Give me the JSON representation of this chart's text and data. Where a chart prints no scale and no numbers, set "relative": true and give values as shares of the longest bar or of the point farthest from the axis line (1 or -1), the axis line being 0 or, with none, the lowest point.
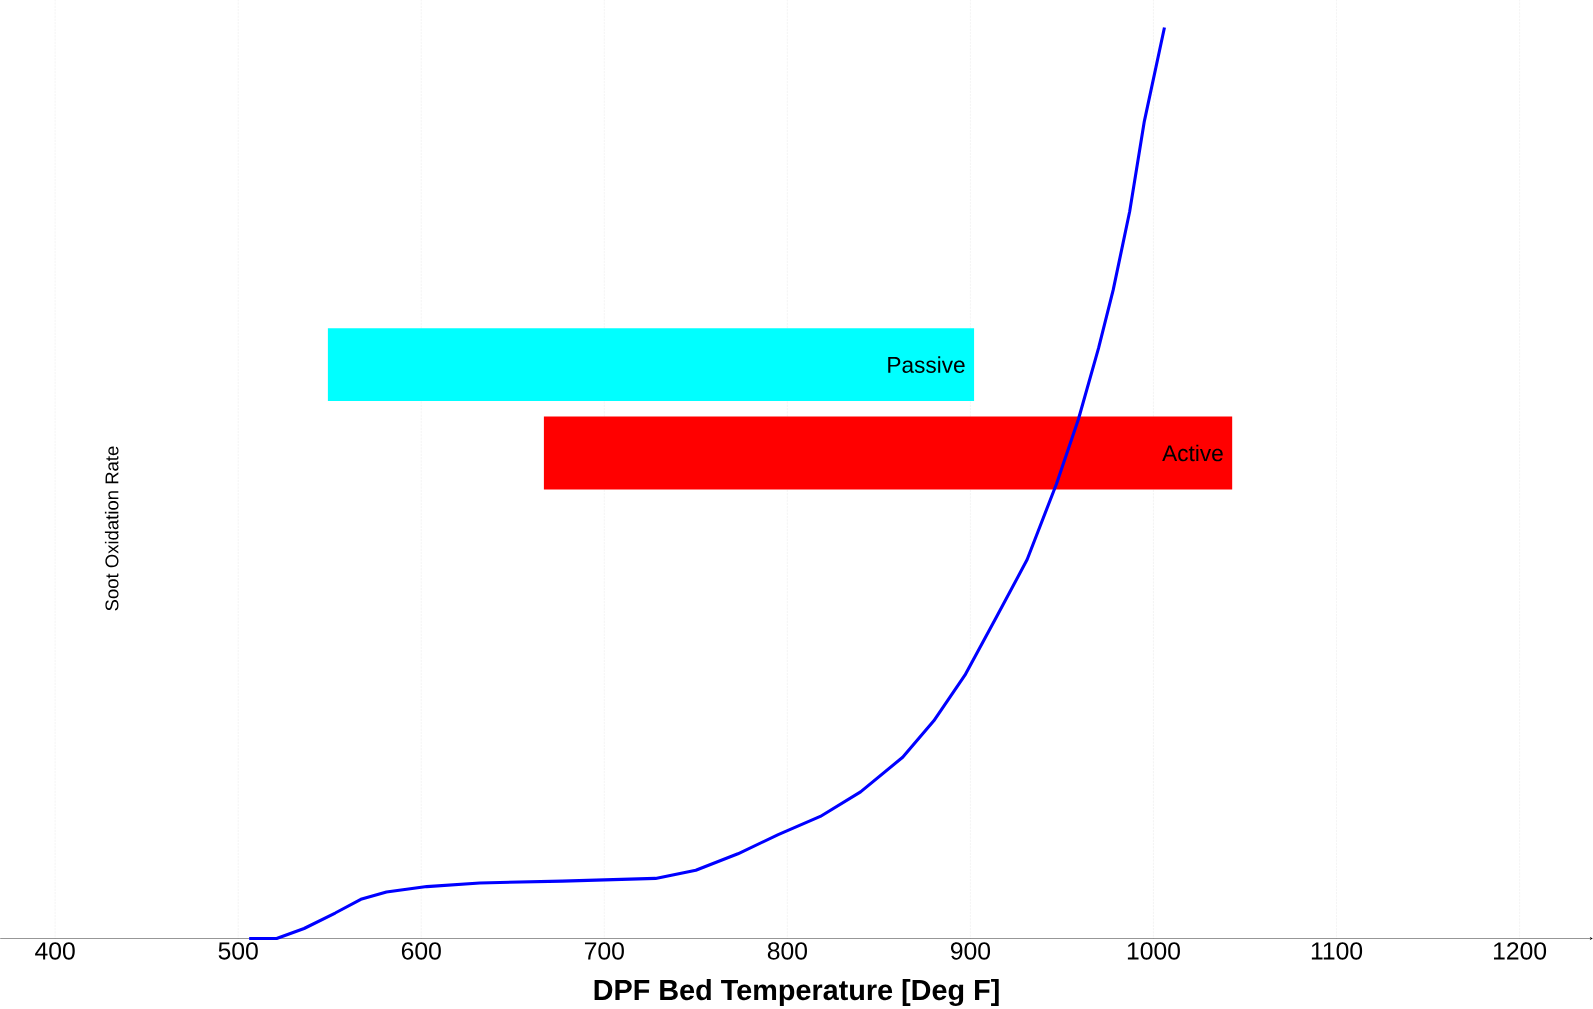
{
  "chart_data": {
    "type": "line",
    "relative": true,
    "xlabel": "DPF Bed Temperature [Deg F]",
    "ylabel": "Soot Oxidation Rate",
    "xlim": [
      370,
      1240
    ],
    "xticks": [
      400,
      500,
      600,
      700,
      800,
      900,
      1000,
      1100,
      1200
    ],
    "tick_labels": "x",
    "grid": "x",
    "series": [
      {
        "color": "#0000ff",
        "x": [
          506,
          521,
          536,
          553,
          567,
          581,
          603,
          632,
          677,
          728,
          750,
          773,
          795,
          818,
          840,
          863,
          880,
          897,
          914,
          931,
          947,
          959,
          970,
          978,
          987,
          995,
          1006
        ],
        "values": [
          0,
          0,
          0.011,
          0.028,
          0.043,
          0.051,
          0.057,
          0.061,
          0.063,
          0.066,
          0.075,
          0.093,
          0.114,
          0.134,
          0.161,
          0.199,
          0.239,
          0.289,
          0.352,
          0.416,
          0.499,
          0.57,
          0.648,
          0.712,
          0.798,
          0.897,
          1.0
        ]
      }
    ],
    "bands": [
      {
        "axis": "x",
        "from": 549,
        "to": 902,
        "label": "Passive",
        "color": "#00ffff"
      },
      {
        "axis": "x",
        "from": 667,
        "to": 1043,
        "label": "Active",
        "color": "#ff0000"
      }
    ]
  }
}
